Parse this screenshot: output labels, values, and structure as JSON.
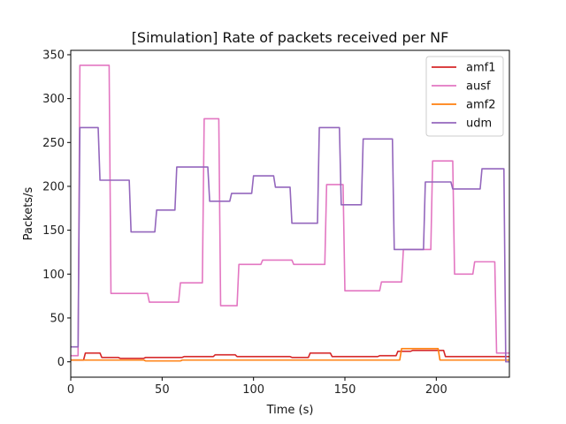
{
  "chart_data": {
    "type": "line",
    "title": "[Simulation] Rate of packets received per NF",
    "xlabel": "Time (s)",
    "ylabel": "Packets/s",
    "xlim": [
      0,
      240
    ],
    "ylim": [
      -17.5,
      355
    ],
    "x_ticks": [
      0,
      50,
      100,
      150,
      200
    ],
    "y_ticks": [
      0,
      50,
      100,
      150,
      200,
      250,
      300,
      350
    ],
    "grid": false,
    "legend_position": "top-right",
    "series": [
      {
        "name": "amf1",
        "color": "#d62728",
        "points": [
          [
            0,
            2
          ],
          [
            7,
            2
          ],
          [
            8,
            10
          ],
          [
            16,
            10
          ],
          [
            17,
            5
          ],
          [
            26,
            5
          ],
          [
            27,
            4
          ],
          [
            40,
            4
          ],
          [
            41,
            5
          ],
          [
            61,
            5
          ],
          [
            62,
            6
          ],
          [
            78,
            6
          ],
          [
            79,
            8
          ],
          [
            90,
            8
          ],
          [
            91,
            6
          ],
          [
            120,
            6
          ],
          [
            121,
            5
          ],
          [
            130,
            5
          ],
          [
            131,
            10
          ],
          [
            142,
            10
          ],
          [
            143,
            6
          ],
          [
            168,
            6
          ],
          [
            169,
            7
          ],
          [
            178,
            7
          ],
          [
            179,
            12
          ],
          [
            186,
            12
          ],
          [
            187,
            13
          ],
          [
            204,
            13
          ],
          [
            205,
            6
          ],
          [
            240,
            6
          ]
        ]
      },
      {
        "name": "ausf",
        "color": "#e377c2",
        "points": [
          [
            0,
            7
          ],
          [
            4,
            7
          ],
          [
            5,
            338
          ],
          [
            21,
            338
          ],
          [
            22,
            78
          ],
          [
            42,
            78
          ],
          [
            43,
            68
          ],
          [
            59,
            68
          ],
          [
            60,
            90
          ],
          [
            72,
            90
          ],
          [
            73,
            277
          ],
          [
            81,
            277
          ],
          [
            82,
            64
          ],
          [
            91,
            64
          ],
          [
            92,
            111
          ],
          [
            104,
            111
          ],
          [
            105,
            116
          ],
          [
            121,
            116
          ],
          [
            122,
            111
          ],
          [
            139,
            111
          ],
          [
            140,
            202
          ],
          [
            149,
            202
          ],
          [
            150,
            81
          ],
          [
            169,
            81
          ],
          [
            170,
            91
          ],
          [
            181,
            91
          ],
          [
            182,
            128
          ],
          [
            197,
            128
          ],
          [
            198,
            229
          ],
          [
            209,
            229
          ],
          [
            210,
            100
          ],
          [
            220,
            100
          ],
          [
            221,
            114
          ],
          [
            232,
            114
          ],
          [
            233,
            10
          ],
          [
            240,
            10
          ]
        ]
      },
      {
        "name": "amf2",
        "color": "#ff7f0e",
        "points": [
          [
            0,
            2
          ],
          [
            40,
            2
          ],
          [
            41,
            1
          ],
          [
            60,
            1
          ],
          [
            61,
            2
          ],
          [
            180,
            2
          ],
          [
            181,
            15
          ],
          [
            201,
            15
          ],
          [
            202,
            2
          ],
          [
            240,
            2
          ]
        ]
      },
      {
        "name": "udm",
        "color": "#9467bd",
        "points": [
          [
            0,
            17
          ],
          [
            4,
            17
          ],
          [
            5,
            267
          ],
          [
            15,
            267
          ],
          [
            16,
            207
          ],
          [
            32,
            207
          ],
          [
            33,
            148
          ],
          [
            46,
            148
          ],
          [
            47,
            173
          ],
          [
            57,
            173
          ],
          [
            58,
            222
          ],
          [
            75,
            222
          ],
          [
            76,
            183
          ],
          [
            87,
            183
          ],
          [
            88,
            192
          ],
          [
            99,
            192
          ],
          [
            100,
            212
          ],
          [
            111,
            212
          ],
          [
            112,
            199
          ],
          [
            120,
            199
          ],
          [
            121,
            158
          ],
          [
            135,
            158
          ],
          [
            136,
            267
          ],
          [
            147,
            267
          ],
          [
            148,
            179
          ],
          [
            159,
            179
          ],
          [
            160,
            254
          ],
          [
            176,
            254
          ],
          [
            177,
            128
          ],
          [
            193,
            128
          ],
          [
            194,
            205
          ],
          [
            208,
            205
          ],
          [
            209,
            197
          ],
          [
            224,
            197
          ],
          [
            225,
            220
          ],
          [
            237,
            220
          ],
          [
            238,
            0
          ],
          [
            240,
            0
          ]
        ]
      }
    ]
  }
}
